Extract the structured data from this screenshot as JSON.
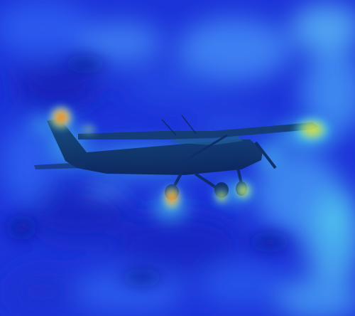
{
  "image": {
    "subject": "airplane-silhouette",
    "overlay": "attention-heatmap"
  },
  "colors": {
    "base_blue": "#1a2fd6",
    "deep_blue": "#0f1ea8",
    "mid_blue": "#2c55f0",
    "light_blue": "#3d8cf2",
    "cyan": "#3fd0e8",
    "teal": "#2fb7b0",
    "yellow": "#f2e23a",
    "orange": "#f08a1e",
    "red": "#e0281e",
    "aircraft": "#0d2a63"
  },
  "hotspots": [
    {
      "name": "tail-tip-hotspot",
      "level": "red"
    },
    {
      "name": "wing-tip-hotspot",
      "level": "yellow"
    },
    {
      "name": "main-wheel-hotspot",
      "level": "orange"
    },
    {
      "name": "nose-wheel-hotspot",
      "level": "yellow"
    },
    {
      "name": "mid-wheel-hotspot",
      "level": "yellow"
    }
  ]
}
